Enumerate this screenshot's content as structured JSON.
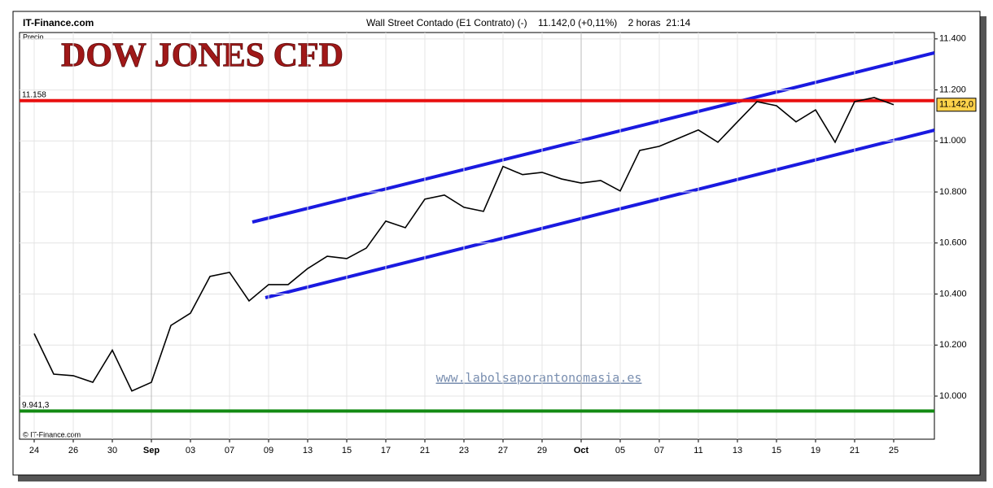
{
  "source": "IT-Finance.com",
  "header": "Wall Street Contado (E1 Contrato) (-)    11.142,0 (+0,11%)    2 horas  21:14",
  "axis_label": "Precio",
  "watermark": "www.labolsaporantonomasia.es",
  "copyright": "© IT-Finance.com",
  "chart_data": {
    "type": "line",
    "title": "DOW JONES CFD",
    "categories": [
      "24",
      null,
      "26",
      null,
      "30",
      null,
      "Sep",
      null,
      "03",
      null,
      "07",
      null,
      "09",
      null,
      "13",
      null,
      "15",
      null,
      "17",
      null,
      "21",
      null,
      "23",
      null,
      "27",
      null,
      "29",
      null,
      "Oct",
      null,
      "05",
      null,
      "07",
      null,
      "11",
      null,
      "13",
      null,
      "15",
      null,
      "19",
      null,
      "21",
      null,
      "25"
    ],
    "series": [
      {
        "name": "Wall Street Contado",
        "color": "#000000",
        "values": [
          10245,
          10086,
          10080,
          10054,
          10180,
          10020,
          10054,
          10277,
          10325,
          10469,
          10485,
          10373,
          10437,
          10437,
          10500,
          10548,
          10539,
          10580,
          10686,
          10660,
          10772,
          10788,
          10740,
          10724,
          10900,
          10868,
          10877,
          10851,
          10835,
          10845,
          10804,
          10963,
          10979,
          11011,
          11043,
          10995,
          11075,
          11154,
          11138,
          11075,
          11122,
          10995,
          11154,
          11170,
          11142
        ]
      }
    ],
    "ylim": [
      9831,
      11425
    ],
    "yticks": [
      {
        "value": 10000,
        "label": "10.000"
      },
      {
        "value": 10200,
        "label": "10.200"
      },
      {
        "value": 10400,
        "label": "10.400"
      },
      {
        "value": 10600,
        "label": "10.600"
      },
      {
        "value": 10800,
        "label": "10.800"
      },
      {
        "value": 11000,
        "label": "11.000"
      },
      {
        "value": 11200,
        "label": "11.200"
      },
      {
        "value": 11400,
        "label": "11.400"
      }
    ],
    "reference_lines": [
      {
        "value": 11158,
        "label": "11.158",
        "color": "#e81010"
      },
      {
        "value": 9941.3,
        "label": "9.941,3",
        "color": "#138a13"
      }
    ],
    "last_value": {
      "value": 11142,
      "label": "11.142,0"
    },
    "grid": true
  }
}
